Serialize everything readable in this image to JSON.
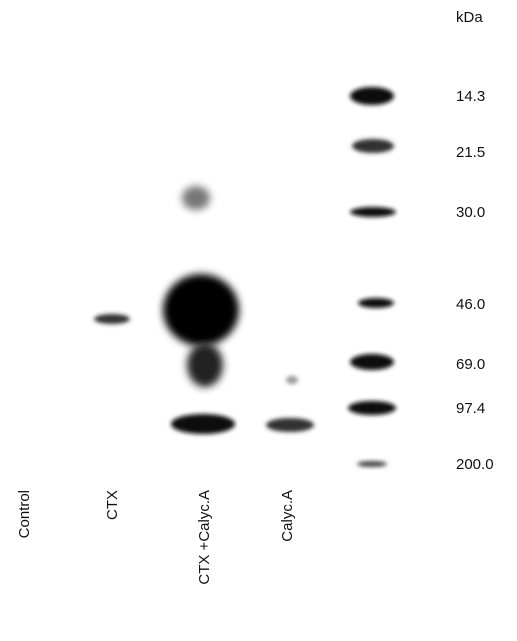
{
  "markers": {
    "unit": "kDa",
    "labels": [
      "14.3",
      "21.5",
      "30.0",
      "46.0",
      "69.0",
      "97.4",
      "200.0"
    ]
  },
  "lanes": [
    "Control",
    "CTX",
    "CTX +Calyc.A",
    "Calyc.A"
  ]
}
